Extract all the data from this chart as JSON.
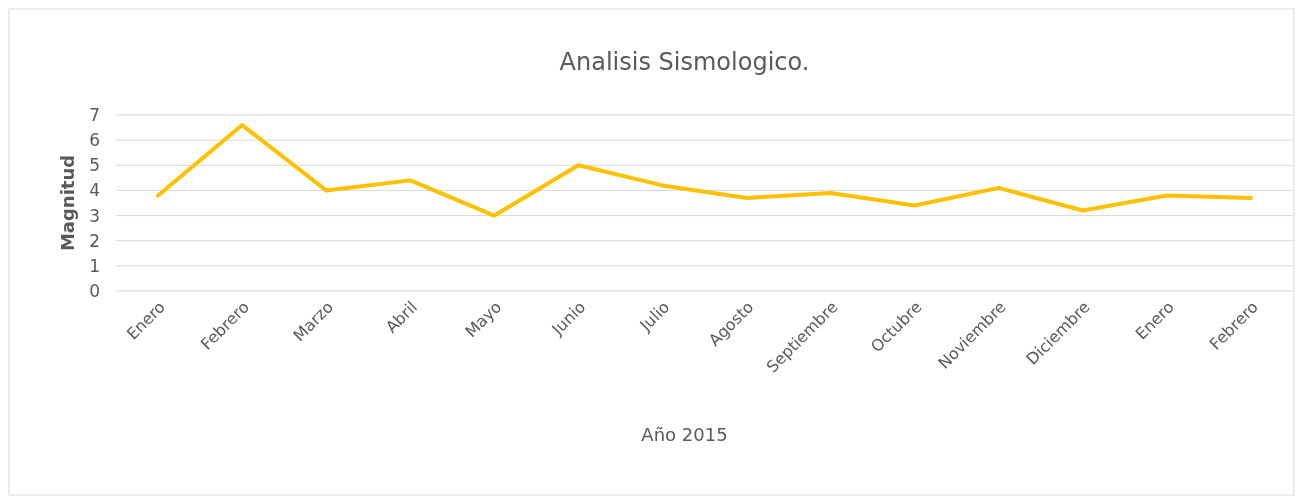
{
  "chart_data": {
    "type": "line",
    "title": "Analisis Sismologico.",
    "xlabel": "Año 2015",
    "ylabel": "Magnitud",
    "categories": [
      "Enero",
      "Febrero",
      "Marzo",
      "Abril",
      "Mayo",
      "Junio",
      "Julio",
      "Agosto",
      "Septiembre",
      "Octubre",
      "Noviembre",
      "Diciembre",
      "Enero",
      "Febrero"
    ],
    "series": [
      {
        "color": "#ffc000",
        "values": [
          3.8,
          6.6,
          4.0,
          4.4,
          3.0,
          5.0,
          4.2,
          3.7,
          3.9,
          3.4,
          4.1,
          3.2,
          3.8,
          3.7
        ]
      }
    ],
    "ylim": [
      0,
      7
    ],
    "yticks": [
      0,
      1,
      2,
      3,
      4,
      5,
      6,
      7
    ],
    "grid": "y",
    "marker": "none",
    "line_style": "solid"
  }
}
